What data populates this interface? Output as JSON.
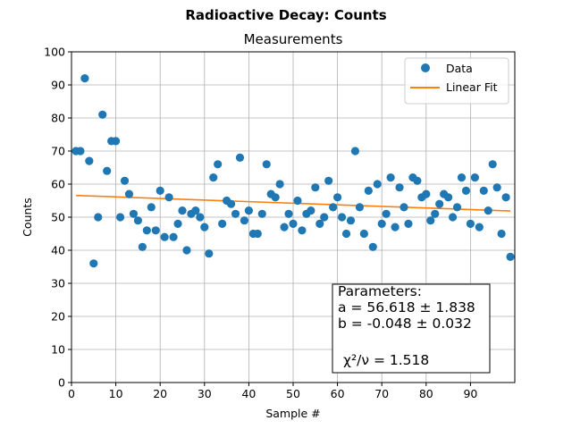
{
  "figure": {
    "suptitle": "Radioactive Decay: Counts"
  },
  "chart_data": {
    "type": "scatter",
    "title": "Measurements",
    "xlabel": "Sample #",
    "ylabel": "Counts",
    "xlim": [
      0,
      100
    ],
    "ylim": [
      0,
      100
    ],
    "xticks": [
      0,
      10,
      20,
      30,
      40,
      50,
      60,
      70,
      80,
      90
    ],
    "yticks": [
      0,
      10,
      20,
      30,
      40,
      50,
      60,
      70,
      80,
      90,
      100
    ],
    "grid": true,
    "legend": {
      "placement": "top-right",
      "entries": [
        "Data",
        "Linear Fit"
      ]
    },
    "colors": {
      "data": "#1f77b4",
      "fit": "#ff7f0e"
    },
    "series": [
      {
        "name": "Data",
        "kind": "points",
        "x": [
          1,
          2,
          3,
          4,
          5,
          6,
          7,
          8,
          9,
          10,
          11,
          12,
          13,
          14,
          15,
          16,
          17,
          18,
          19,
          20,
          21,
          22,
          23,
          24,
          25,
          26,
          27,
          28,
          29,
          30,
          31,
          32,
          33,
          34,
          35,
          36,
          37,
          38,
          39,
          40,
          41,
          42,
          43,
          44,
          45,
          46,
          47,
          48,
          49,
          50,
          51,
          52,
          53,
          54,
          55,
          56,
          57,
          58,
          59,
          60,
          61,
          62,
          63,
          64,
          65,
          66,
          67,
          68,
          69,
          70,
          71,
          72,
          73,
          74,
          75,
          76,
          77,
          78,
          79,
          80,
          81,
          82,
          83,
          84,
          85,
          86,
          87,
          88,
          89,
          90,
          91,
          92,
          93,
          94,
          95,
          96,
          97,
          98,
          99
        ],
        "y": [
          70,
          70,
          92,
          67,
          36,
          50,
          81,
          64,
          73,
          73,
          50,
          61,
          57,
          51,
          49,
          41,
          46,
          53,
          46,
          58,
          44,
          56,
          44,
          48,
          52,
          40,
          51,
          52,
          50,
          47,
          39,
          62,
          66,
          48,
          55,
          54,
          51,
          68,
          49,
          52,
          45,
          45,
          51,
          66,
          57,
          56,
          60,
          47,
          51,
          48,
          55,
          46,
          51,
          52,
          59,
          48,
          50,
          61,
          53,
          56,
          50,
          45,
          49,
          70,
          53,
          45,
          58,
          41,
          60,
          48,
          51,
          62,
          47,
          59,
          53,
          48,
          62,
          61,
          56,
          57,
          49,
          51,
          54,
          57,
          56,
          50,
          53,
          62,
          58,
          48,
          62,
          47,
          58,
          52,
          66,
          59,
          45,
          56,
          38
        ]
      },
      {
        "name": "Linear Fit",
        "kind": "line",
        "x": [
          1,
          99
        ],
        "y": [
          56.57,
          51.87
        ]
      }
    ],
    "annotation": {
      "lines": [
        "Parameters:",
        "a = 56.618 ± 1.838",
        "b = -0.048 ± 0.032",
        "",
        "χ²/ν = 1.518"
      ]
    }
  }
}
